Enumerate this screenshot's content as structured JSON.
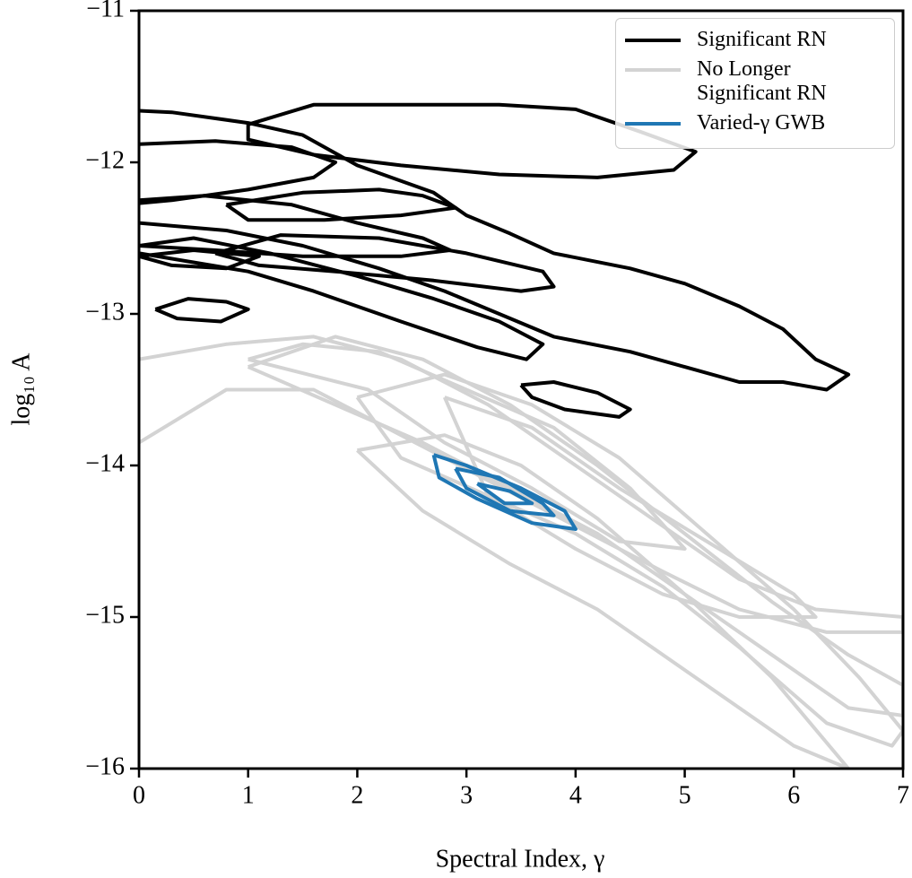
{
  "chart_data": {
    "type": "contour",
    "xlabel": "Spectral Index, γ",
    "ylabel": "log₁₀ A",
    "xlim": [
      0,
      7
    ],
    "ylim": [
      -16,
      -11
    ],
    "xticks": [
      0,
      1,
      2,
      3,
      4,
      5,
      6,
      7
    ],
    "yticks": [
      {
        "value": -16,
        "label": "−16"
      },
      {
        "value": -15,
        "label": "−15"
      },
      {
        "value": -14,
        "label": "−14"
      },
      {
        "value": -13,
        "label": "−13"
      },
      {
        "value": -12,
        "label": "−12"
      },
      {
        "value": -11,
        "label": "−11"
      }
    ],
    "legend": "upper right",
    "series": [
      {
        "name": "Significant RN",
        "color": "#000000",
        "contours": [
          {
            "x": [
              0,
              0.3,
              1,
              1.5,
              2,
              2.7,
              3,
              3.4,
              3.8,
              4.5,
              5,
              5.5,
              5.9,
              6.2,
              6.5,
              6.3,
              5.9,
              5.5,
              5,
              4.5,
              3.8,
              3.3,
              2.8,
              2.2,
              1.5,
              0.8,
              0
            ],
            "y": [
              -11.66,
              -11.67,
              -11.74,
              -11.82,
              -12.02,
              -12.2,
              -12.35,
              -12.47,
              -12.6,
              -12.7,
              -12.8,
              -12.95,
              -13.1,
              -13.3,
              -13.4,
              -13.5,
              -13.45,
              -13.45,
              -13.35,
              -13.25,
              -13.15,
              -13.0,
              -12.85,
              -12.7,
              -12.55,
              -12.45,
              -12.4
            ]
          },
          {
            "x": [
              1,
              1.6,
              2.4,
              3.3,
              4,
              4.6,
              5.1,
              4.9,
              4.2,
              3.3,
              2.4,
              1.6,
              1,
              1
            ],
            "y": [
              -11.75,
              -11.62,
              -11.62,
              -11.62,
              -11.65,
              -11.8,
              -11.93,
              -12.05,
              -12.1,
              -12.08,
              -12.02,
              -11.95,
              -11.85,
              -11.75
            ]
          },
          {
            "x": [
              0,
              0.7,
              1.4,
              1.8,
              1.6,
              1,
              0.3,
              0
            ],
            "y": [
              -11.88,
              -11.86,
              -11.9,
              -12.0,
              -12.1,
              -12.18,
              -12.25,
              -12.27
            ]
          },
          {
            "x": [
              0.8,
              1.5,
              2.2,
              2.6,
              2.9,
              2.4,
              1.7,
              1,
              0.8
            ],
            "y": [
              -12.28,
              -12.2,
              -12.18,
              -12.22,
              -12.3,
              -12.35,
              -12.38,
              -12.38,
              -12.28
            ]
          },
          {
            "x": [
              0,
              0.6,
              1.4,
              2,
              2.6,
              2.85,
              2.4,
              1.5,
              0.7,
              0
            ],
            "y": [
              -12.25,
              -12.22,
              -12.28,
              -12.4,
              -12.5,
              -12.58,
              -12.62,
              -12.62,
              -12.58,
              -12.55
            ]
          },
          {
            "x": [
              0,
              0.5,
              1.2,
              2,
              2.7,
              3.3,
              3.7,
              3.55,
              3.1,
              2.4,
              1.6,
              1,
              0
            ],
            "y": [
              -12.55,
              -12.5,
              -12.6,
              -12.75,
              -12.9,
              -13.05,
              -13.2,
              -13.3,
              -13.22,
              -13.05,
              -12.85,
              -12.72,
              -12.6
            ]
          },
          {
            "x": [
              0.7,
              1.3,
              2.2,
              3.0,
              3.7,
              3.8,
              3.5,
              2.7,
              1.8,
              1.1,
              0.7
            ],
            "y": [
              -12.6,
              -12.48,
              -12.5,
              -12.6,
              -12.72,
              -12.82,
              -12.85,
              -12.78,
              -12.72,
              -12.68,
              -12.6
            ]
          },
          {
            "x": [
              0,
              0.5,
              1.1,
              0.8,
              0.3,
              0
            ],
            "y": [
              -12.62,
              -12.58,
              -12.62,
              -12.7,
              -12.68,
              -12.62
            ]
          },
          {
            "x": [
              0.15,
              0.45,
              0.8,
              1.0,
              0.75,
              0.35,
              0.15
            ],
            "y": [
              -12.97,
              -12.9,
              -12.92,
              -12.97,
              -13.05,
              -13.03,
              -12.97
            ]
          },
          {
            "x": [
              3.5,
              3.8,
              4.2,
              4.5,
              4.4,
              3.9,
              3.6,
              3.5
            ],
            "y": [
              -13.47,
              -13.45,
              -13.52,
              -13.63,
              -13.68,
              -13.63,
              -13.55,
              -13.47
            ]
          }
        ]
      },
      {
        "name": "No Longer Significant RN",
        "color": "#d3d3d3",
        "contours": [
          {
            "x": [
              0,
              0.8,
              1.6,
              2.4,
              3.2,
              4,
              4.8,
              5.5,
              6.2,
              7,
              7,
              6.3,
              5.5,
              4.8,
              4,
              3.2,
              2.4,
              1.6,
              0.8,
              0
            ],
            "y": [
              -13.3,
              -13.2,
              -13.15,
              -13.3,
              -13.6,
              -14.0,
              -14.4,
              -14.75,
              -14.95,
              -15.0,
              -15.1,
              -15.1,
              -14.95,
              -14.7,
              -14.4,
              -14.1,
              -13.8,
              -13.5,
              -13.5,
              -13.85
            ]
          },
          {
            "x": [
              1.0,
              1.8,
              2.6,
              3.4,
              4.2,
              5.0,
              5.8,
              6.5,
              7,
              7,
              6.5,
              5.8,
              5.0,
              4.2,
              3.4,
              2.6,
              1.8,
              1.0
            ],
            "y": [
              -13.35,
              -13.15,
              -13.3,
              -13.6,
              -14.0,
              -14.45,
              -14.9,
              -15.25,
              -15.45,
              -15.65,
              -15.6,
              -15.25,
              -14.85,
              -14.45,
              -14.15,
              -13.85,
              -13.6,
              -13.35
            ]
          },
          {
            "x": [
              2.0,
              2.8,
              3.6,
              4.4,
              5.2,
              6.0,
              6.6,
              7,
              6.9,
              6.3,
              5.5,
              4.8,
              4.0,
              3.2,
              2.4,
              2.0
            ],
            "y": [
              -13.55,
              -13.4,
              -13.6,
              -13.95,
              -14.45,
              -14.95,
              -15.4,
              -15.75,
              -15.85,
              -15.7,
              -15.2,
              -14.8,
              -14.45,
              -14.2,
              -13.95,
              -13.55
            ]
          },
          {
            "x": [
              2.8,
              3.6,
              4.4,
              5.2,
              6.0,
              6.2,
              5.5,
              4.8,
              4.0,
              3.2,
              2.8
            ],
            "y": [
              -13.55,
              -13.75,
              -14.15,
              -14.5,
              -14.85,
              -15.0,
              -15.0,
              -14.85,
              -14.55,
              -14.2,
              -13.55
            ]
          },
          {
            "x": [
              2.0,
              2.8,
              3.5,
              4.2,
              5.0,
              5.8,
              6.5,
              6.0,
              5.0,
              4.2,
              3.4,
              2.6,
              2.0
            ],
            "y": [
              -13.9,
              -13.8,
              -14.0,
              -14.35,
              -14.85,
              -15.4,
              -16.0,
              -15.85,
              -15.35,
              -14.95,
              -14.65,
              -14.3,
              -13.9
            ]
          },
          {
            "x": [
              1.0,
              1.5,
              2.2,
              3.0,
              3.8,
              4.5,
              5.0,
              4.4,
              3.6,
              2.8,
              2.1,
              1.0
            ],
            "y": [
              -13.3,
              -13.2,
              -13.25,
              -13.5,
              -13.75,
              -14.15,
              -14.55,
              -14.5,
              -14.15,
              -13.85,
              -13.5,
              -13.3
            ]
          }
        ]
      },
      {
        "name": "Varied-γ GWB",
        "color": "#1f77b4",
        "contours": [
          {
            "x": [
              2.7,
              3.0,
              3.5,
              3.9,
              4.0,
              3.6,
              3.1,
              2.75,
              2.7
            ],
            "y": [
              -13.93,
              -14.0,
              -14.15,
              -14.3,
              -14.42,
              -14.38,
              -14.22,
              -14.08,
              -13.93
            ]
          },
          {
            "x": [
              2.9,
              3.3,
              3.7,
              3.8,
              3.4,
              3.0,
              2.9
            ],
            "y": [
              -14.02,
              -14.08,
              -14.25,
              -14.33,
              -14.3,
              -14.15,
              -14.02
            ]
          },
          {
            "x": [
              3.1,
              3.4,
              3.6,
              3.35,
              3.1
            ],
            "y": [
              -14.12,
              -14.17,
              -14.25,
              -14.25,
              -14.12
            ]
          }
        ]
      }
    ]
  }
}
